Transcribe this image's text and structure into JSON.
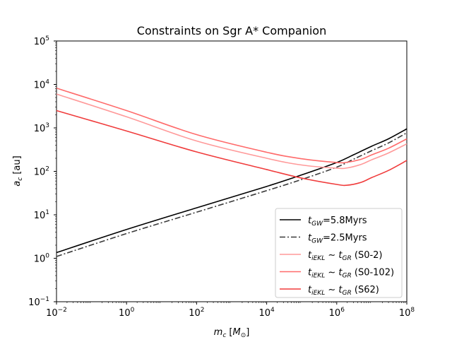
{
  "chart_data": {
    "type": "line",
    "title": "Constraints on Sgr A* Companion",
    "xlabel": {
      "var": "m",
      "sub": "c",
      "unit_open": " [",
      "unit": "M",
      "unit_sub": "⊙",
      "unit_close": "]"
    },
    "ylabel": {
      "var": "a",
      "sub": "c",
      "unit": " [au]"
    },
    "xscale": "log",
    "yscale": "log",
    "xlim": [
      0.01,
      100000000
    ],
    "ylim": [
      0.1,
      100000
    ],
    "x_ticks": [
      {
        "base": "10",
        "exp": "−2",
        "value": 0.01
      },
      {
        "base": "10",
        "exp": "0",
        "value": 1
      },
      {
        "base": "10",
        "exp": "2",
        "value": 100
      },
      {
        "base": "10",
        "exp": "4",
        "value": 10000
      },
      {
        "base": "10",
        "exp": "6",
        "value": 1000000
      },
      {
        "base": "10",
        "exp": "8",
        "value": 100000000
      }
    ],
    "y_ticks": [
      {
        "base": "10",
        "exp": "−1",
        "value": 0.1
      },
      {
        "base": "10",
        "exp": "0",
        "value": 1
      },
      {
        "base": "10",
        "exp": "1",
        "value": 10
      },
      {
        "base": "10",
        "exp": "2",
        "value": 100
      },
      {
        "base": "10",
        "exp": "3",
        "value": 1000
      },
      {
        "base": "10",
        "exp": "4",
        "value": 10000
      },
      {
        "base": "10",
        "exp": "5",
        "value": 100000
      }
    ],
    "grid": false,
    "legend_position": "lower-right",
    "series": [
      {
        "legend": {
          "var": "t",
          "sub": "GW",
          "rest": "=5.8Myrs"
        },
        "color": "#000000",
        "dash": "solid",
        "x": [
          0.01,
          1,
          100,
          10000,
          100000,
          1000000,
          3000000,
          10000000,
          30000000,
          100000000
        ],
        "y": [
          1.35,
          4.6,
          14.5,
          45,
          83,
          160,
          240,
          380,
          560,
          950
        ]
      },
      {
        "legend": {
          "var": "t",
          "sub": "GW",
          "rest": "=2.5Myrs"
        },
        "color": "#3a3a3a",
        "dash": "dashdot",
        "x": [
          0.01,
          1,
          100,
          10000,
          100000,
          1000000,
          3000000,
          10000000,
          30000000,
          100000000
        ],
        "y": [
          1.1,
          3.7,
          11.5,
          36,
          65,
          125,
          190,
          300,
          450,
          770
        ]
      },
      {
        "legend": {
          "var": "t",
          "sub": "iEKL",
          "rest": " ∼ ",
          "var2": "t",
          "sub2": "GR",
          "tail": " (S0-2)"
        },
        "color": "#ff9a9a",
        "dash": "solid",
        "x": [
          0.01,
          1,
          100,
          10000,
          100000,
          1000000,
          2000000,
          5000000,
          10000000,
          30000000,
          100000000
        ],
        "y": [
          6000,
          1800,
          500,
          200,
          140,
          118,
          120,
          145,
          185,
          265,
          430
        ]
      },
      {
        "legend": {
          "var": "t",
          "sub": "iEKL",
          "rest": " ∼ ",
          "var2": "t",
          "sub2": "GR",
          "tail": " (S0-102)"
        },
        "color": "#ff6b6b",
        "dash": "solid",
        "x": [
          0.01,
          1,
          100,
          10000,
          100000,
          1000000,
          2000000,
          5000000,
          10000000,
          30000000,
          100000000
        ],
        "y": [
          8200,
          2500,
          700,
          275,
          195,
          160,
          162,
          190,
          240,
          340,
          560
        ]
      },
      {
        "legend": {
          "var": "t",
          "sub": "iEKL",
          "rest": " ∼ ",
          "var2": "t",
          "sub2": "GR",
          "tail": " (S62)"
        },
        "color": "#f03c3c",
        "dash": "solid",
        "x": [
          0.01,
          1,
          100,
          10000,
          100000,
          1000000,
          2000000,
          5000000,
          10000000,
          30000000,
          100000000
        ],
        "y": [
          2500,
          850,
          280,
          110,
          70,
          50,
          48,
          56,
          72,
          105,
          178
        ]
      }
    ]
  }
}
